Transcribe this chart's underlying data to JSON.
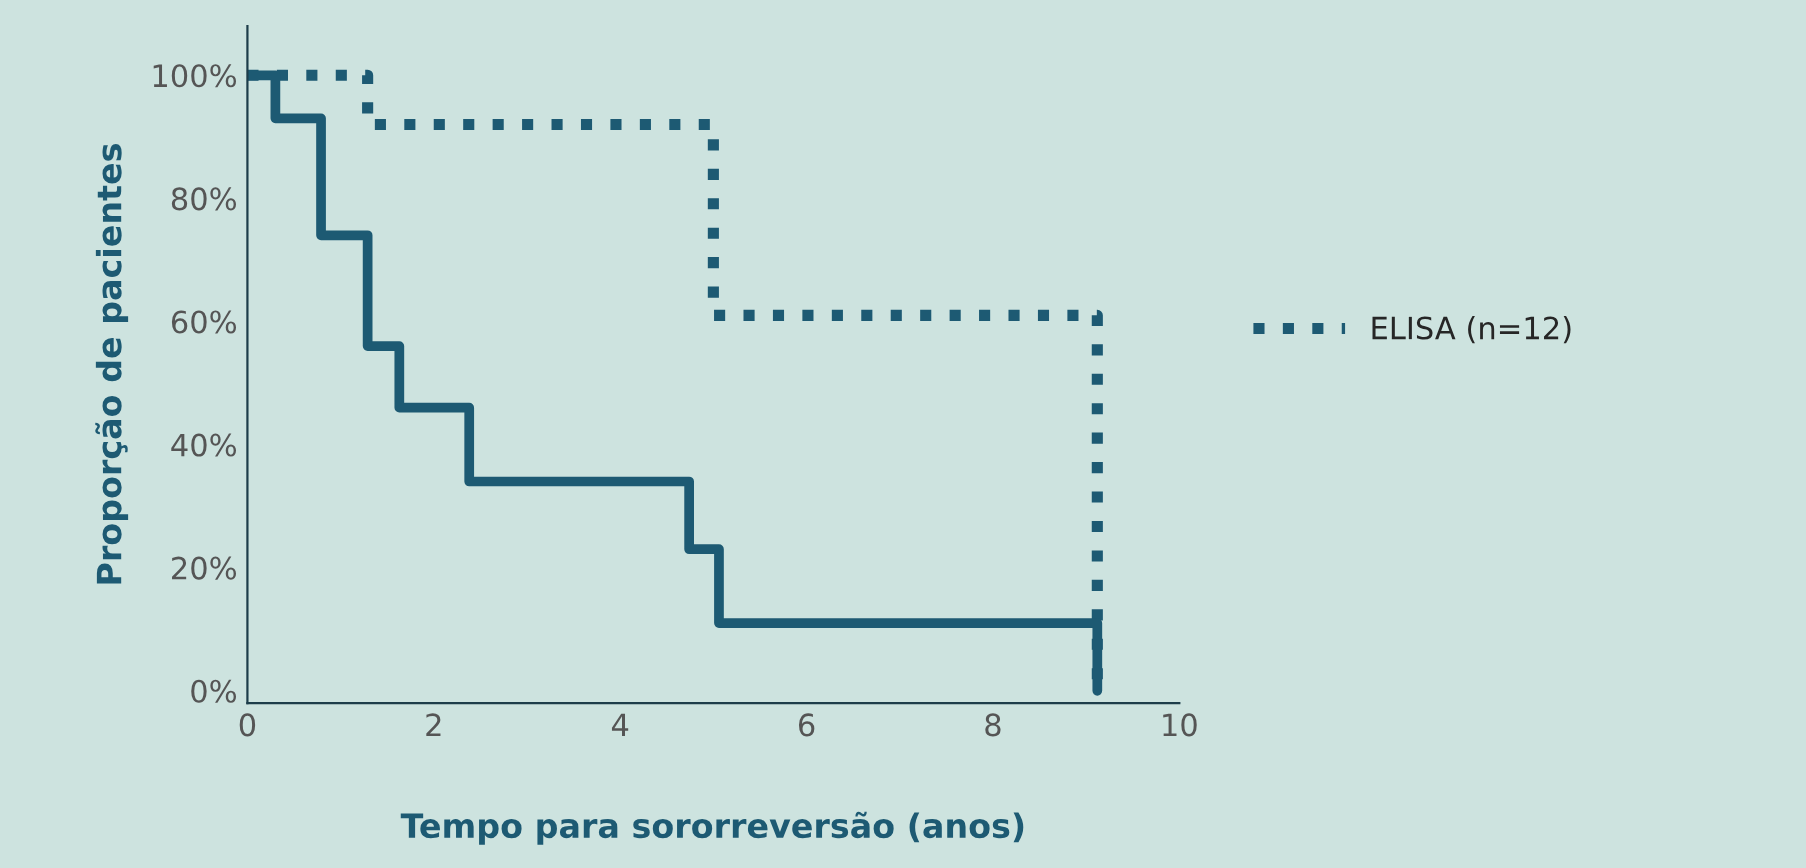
{
  "chart_data": {
    "type": "step",
    "xlabel": "Tempo para sororreversão (anos)",
    "ylabel": "Proporção de pacientes",
    "xlim": [
      0,
      10
    ],
    "xticks": [
      0,
      2,
      4,
      6,
      8,
      10
    ],
    "ylim": [
      -2,
      108
    ],
    "yticks": [
      {
        "value": 0,
        "label": "0%"
      },
      {
        "value": 20,
        "label": "20%"
      },
      {
        "value": 40,
        "label": "40%"
      },
      {
        "value": 60,
        "label": "60%"
      },
      {
        "value": 80,
        "label": "80%"
      },
      {
        "value": 100,
        "label": "100%"
      }
    ],
    "grid": false,
    "legend": "right",
    "marker": "none",
    "series": [
      {
        "name": "ELISA (n=12)",
        "color": "#1d5a73",
        "line_style": "dotted",
        "x": [
          0,
          1.29,
          5.0,
          9.12
        ],
        "values": [
          100,
          92,
          61,
          0
        ]
      },
      {
        "color": "#1d5a73",
        "line_style": "solid",
        "x": [
          0,
          0.3,
          0.79,
          1.29,
          1.63,
          2.38,
          4.74,
          5.06,
          9.12
        ],
        "values": [
          100,
          93,
          74,
          56,
          46,
          34,
          23,
          11,
          0
        ]
      }
    ]
  }
}
